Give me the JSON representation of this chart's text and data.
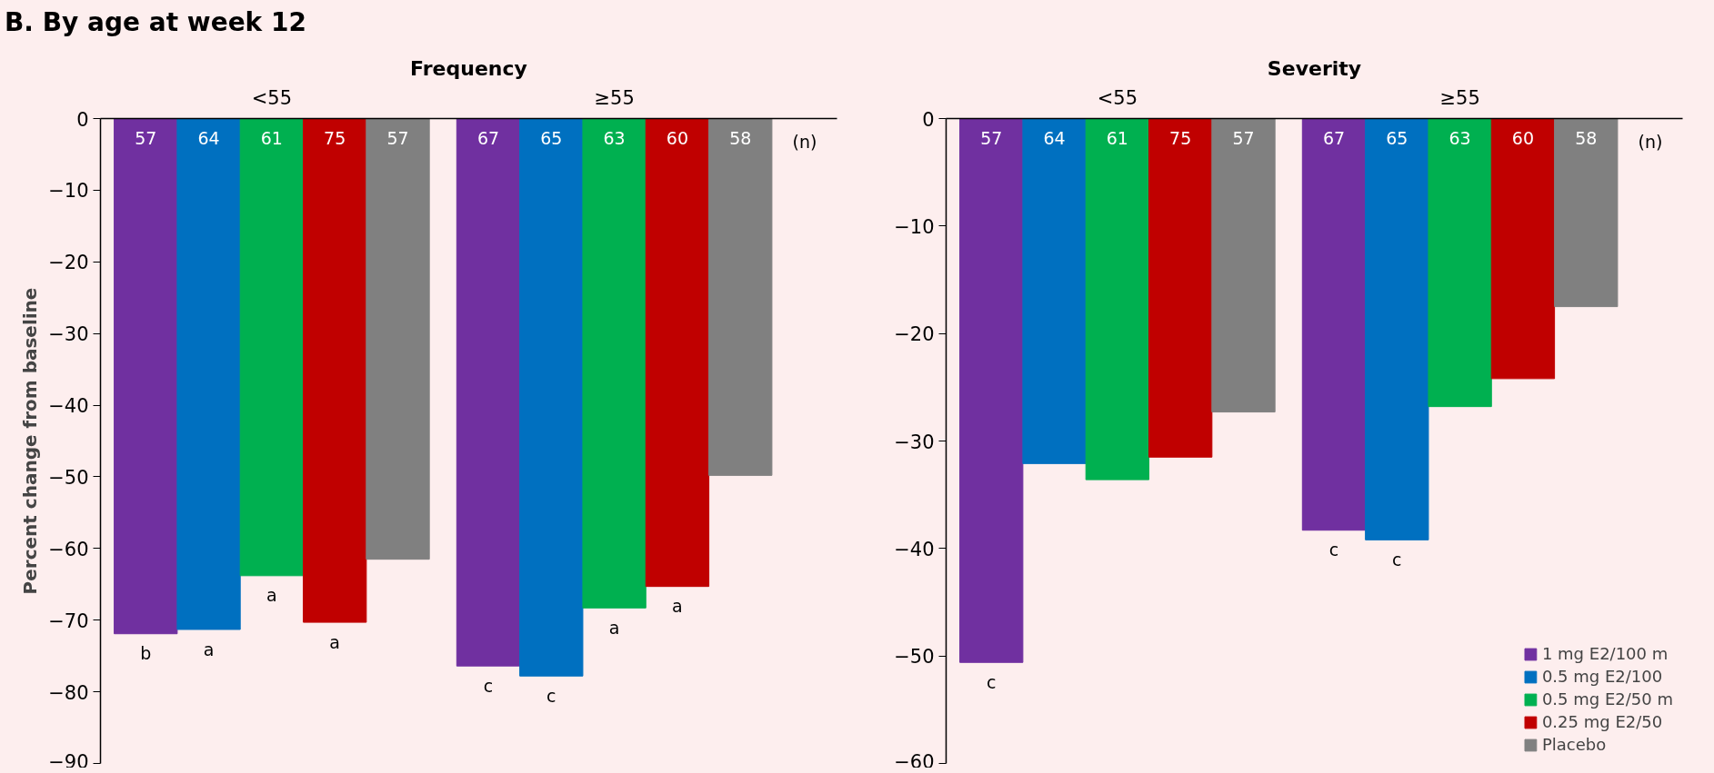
{
  "chart_data": [
    {
      "type": "bar",
      "title": "Frequency",
      "ylabel": "Percent change from baseline",
      "categories": [
        "<55",
        "≥55"
      ],
      "ylim": [
        -90,
        0
      ],
      "yticks": [
        -90,
        -80,
        -70,
        -60,
        -50,
        -40,
        -30,
        -20,
        -10,
        0
      ],
      "grid": false,
      "legend": false,
      "series": [
        {
          "color": "#7030a0",
          "values": [
            -71.9,
            -76.4
          ],
          "value_labels": [
            "b",
            "c"
          ]
        },
        {
          "color": "#0070c0",
          "values": [
            -71.3,
            -77.8
          ],
          "value_labels": [
            "a",
            "c"
          ]
        },
        {
          "color": "#00b050",
          "values": [
            -63.8,
            -68.3
          ],
          "value_labels": [
            "a",
            "a"
          ]
        },
        {
          "color": "#c00000",
          "values": [
            -70.3,
            -65.3
          ],
          "value_labels": [
            "a",
            "a"
          ]
        },
        {
          "color": "#808080",
          "values": [
            -61.5,
            -49.8
          ],
          "value_labels": [
            null,
            null
          ]
        }
      ],
      "annotations": [
        "57",
        "64",
        "61",
        "75",
        "57",
        "67",
        "65",
        "63",
        "60",
        "58",
        "(n)",
        "B. By age at week 12"
      ]
    },
    {
      "type": "bar",
      "title": "Severity",
      "categories": [
        "<55",
        "≥55"
      ],
      "ylim": [
        -60,
        0
      ],
      "yticks": [
        -60,
        -50,
        -40,
        -30,
        -20,
        -10,
        0
      ],
      "grid": false,
      "legend": "bottom right",
      "series": [
        {
          "name": "1 mg E2/100 m",
          "color": "#7030a0",
          "values": [
            -50.6,
            -38.3
          ],
          "value_labels": [
            "c",
            "c"
          ]
        },
        {
          "name": "0.5 mg E2/100",
          "color": "#0070c0",
          "values": [
            -32.1,
            -39.2
          ],
          "value_labels": [
            null,
            "c"
          ]
        },
        {
          "name": "0.5 mg E2/50 m",
          "color": "#00b050",
          "values": [
            -33.6,
            -26.8
          ],
          "value_labels": [
            null,
            null
          ]
        },
        {
          "name": "0.25 mg E2/50",
          "color": "#c00000",
          "values": [
            -31.5,
            -24.2
          ],
          "value_labels": [
            null,
            null
          ]
        },
        {
          "name": "Placebo",
          "color": "#808080",
          "values": [
            -27.3,
            -17.5
          ],
          "value_labels": [
            null,
            null
          ]
        }
      ],
      "annotations": [
        "57",
        "64",
        "61",
        "75",
        "57",
        "67",
        "65",
        "63",
        "60",
        "58",
        "(n)"
      ]
    }
  ]
}
